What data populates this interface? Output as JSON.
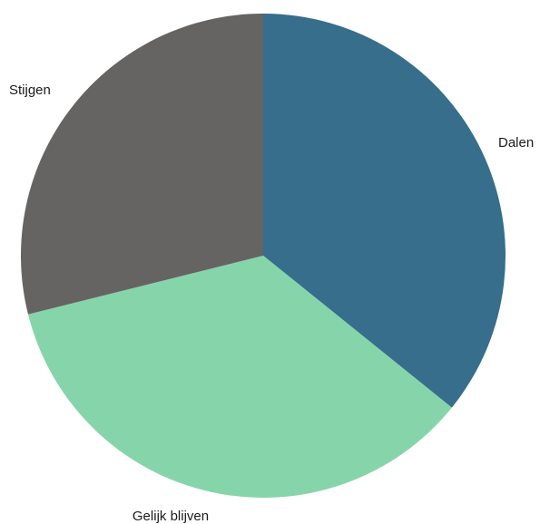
{
  "chart_data": {
    "type": "pie",
    "title": "",
    "start_angle_deg": 0,
    "direction": "clockwise",
    "legend": "none",
    "slices": [
      {
        "label": "Dalen",
        "value": 35.8,
        "color": "#366E8C"
      },
      {
        "label": "Gelijk blijven",
        "value": 35.3,
        "color": "#86D5AA"
      },
      {
        "label": "Stijgen",
        "value": 28.9,
        "color": "#666462"
      }
    ]
  }
}
